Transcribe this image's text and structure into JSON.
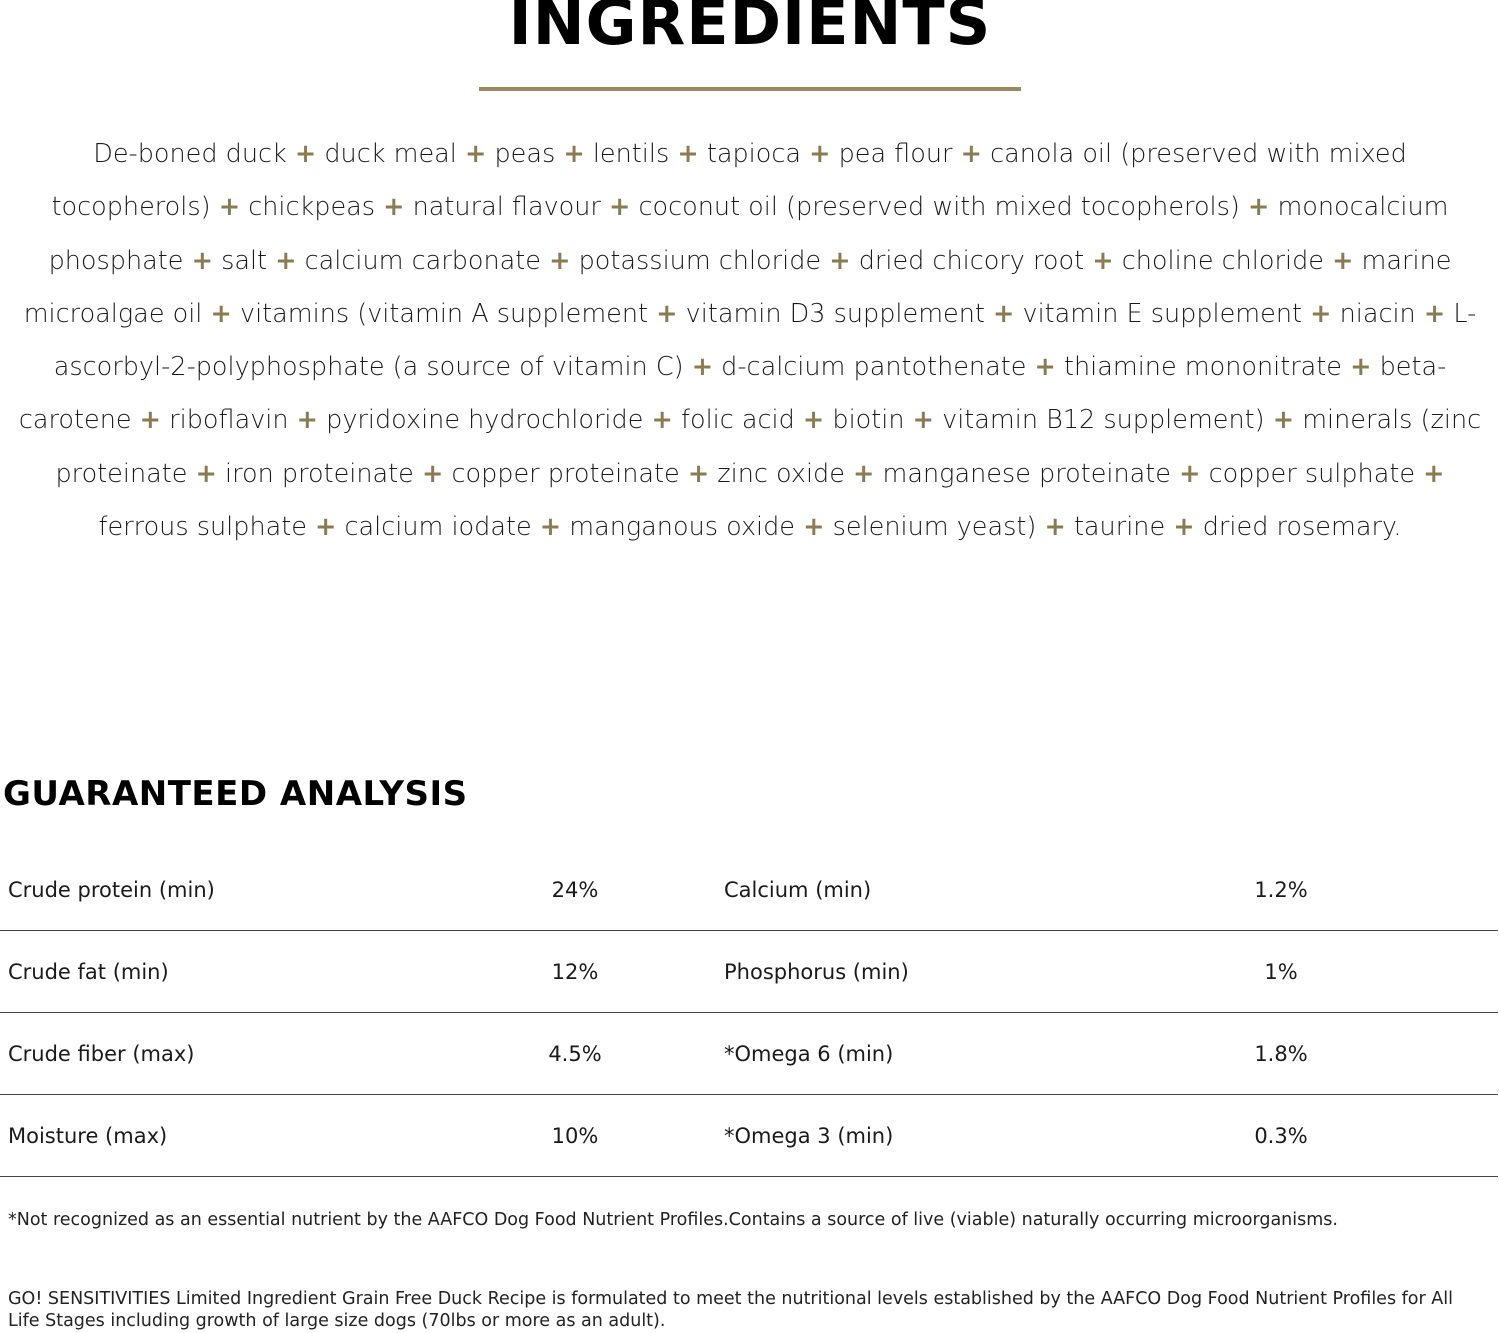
{
  "title": "INGREDIENTS",
  "accent_color": "#8c7b50",
  "ingredients": [
    "De-boned duck",
    "duck meal",
    "peas",
    "lentils",
    "tapioca",
    "pea flour",
    "canola oil (preserved with mixed tocopherols)",
    "chickpeas",
    "natural flavour",
    "coconut oil (preserved with mixed tocopherols)",
    "monocalcium phosphate",
    "salt",
    "calcium carbonate",
    "potassium chloride",
    "dried chicory root",
    "choline chloride",
    "marine microalgae oil",
    "vitamins (vitamin A supplement",
    "vitamin D3 supplement",
    "vitamin E supplement",
    "niacin",
    "L-ascorbyl-2-polyphosphate (a source of vitamin C)",
    "d-calcium pantothenate",
    "thiamine mononitrate",
    "beta-carotene",
    "riboflavin",
    "pyridoxine hydrochloride",
    "folic acid",
    "biotin",
    "vitamin B12 supplement)",
    "minerals (zinc proteinate",
    "iron proteinate",
    "copper proteinate",
    "zinc oxide",
    "manganese proteinate",
    "copper sulphate",
    "ferrous sulphate",
    "calcium iodate",
    "manganous oxide",
    "selenium yeast)",
    "taurine",
    "dried rosemary."
  ],
  "separator": "+",
  "analysis": {
    "title": "GUARANTEED ANALYSIS",
    "rows": [
      {
        "label": "Crude protein (min)",
        "value": "24%",
        "label2": "Calcium (min)",
        "value2": "1.2%"
      },
      {
        "label": "Crude fat (min)",
        "value": "12%",
        "label2": "Phosphorus (min)",
        "value2": "1%"
      },
      {
        "label": "Crude fiber (max)",
        "value": "4.5%",
        "label2": "*Omega 6 (min)",
        "value2": "1.8%"
      },
      {
        "label": "Moisture (max)",
        "value": "10%",
        "label2": "*Omega 3 (min)",
        "value2": "0.3%"
      }
    ]
  },
  "footnote": "*Not recognized as an essential nutrient by the AAFCO Dog Food Nutrient Profiles.Contains a source of live (viable) naturally occurring microorganisms.",
  "statement": "GO! SENSITIVITIES Limited Ingredient Grain Free Duck Recipe is formulated to meet the nutritional levels established by the AAFCO Dog Food Nutrient Profiles for All Life Stages including growth of large size dogs (70lbs or more as an adult)."
}
